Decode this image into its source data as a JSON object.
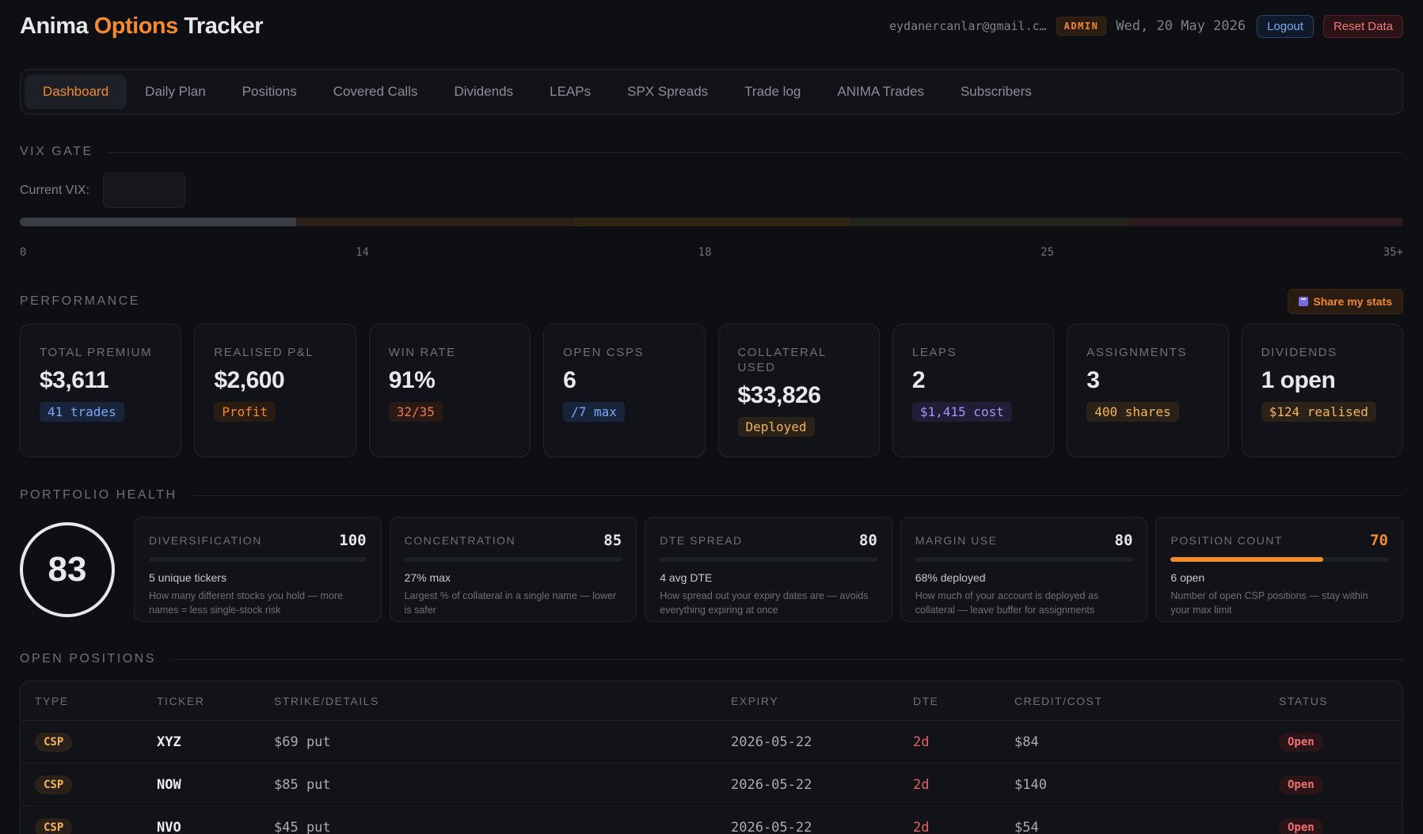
{
  "header": {
    "brand_part1": "Anima",
    "brand_part2": "Options",
    "brand_part3": "Tracker",
    "email": "eydanercanlar@gmail.c…",
    "role_badge": "ADMIN",
    "date": "Wed, 20 May 2026",
    "logout_label": "Logout",
    "reset_label": "Reset Data"
  },
  "nav": {
    "items": [
      {
        "label": "Dashboard",
        "active": true
      },
      {
        "label": "Daily Plan"
      },
      {
        "label": "Positions"
      },
      {
        "label": "Covered Calls"
      },
      {
        "label": "Dividends"
      },
      {
        "label": "LEAPs"
      },
      {
        "label": "SPX Spreads"
      },
      {
        "label": "Trade log"
      },
      {
        "label": "ANIMA Trades"
      },
      {
        "label": "Subscribers"
      }
    ]
  },
  "vix": {
    "title": "VIX GATE",
    "label": "Current VIX:",
    "value": "",
    "ticks": [
      "0",
      "14",
      "18",
      "25",
      "35+"
    ],
    "segment_colors": [
      "#3b3d45",
      "#2a1e16",
      "#2e2414",
      "#20241a",
      "#2a1a1e"
    ]
  },
  "performance": {
    "title": "PERFORMANCE",
    "share_label": "Share my stats",
    "stats": [
      {
        "label": "TOTAL PREMIUM",
        "value": "$3,611",
        "badge": "41 trades",
        "badge_fg": "#79a9f5",
        "badge_bg": "#18243a"
      },
      {
        "label": "REALISED P&L",
        "value": "$2,600",
        "badge": "Profit",
        "badge_fg": "#f28a2e",
        "badge_bg": "#2a1c10"
      },
      {
        "label": "WIN RATE",
        "value": "91%",
        "badge": "32/35",
        "badge_fg": "#f07a55",
        "badge_bg": "#2a1914"
      },
      {
        "label": "OPEN CSPS",
        "value": "6",
        "badge": "/7 max",
        "badge_fg": "#79a9f5",
        "badge_bg": "#18243a"
      },
      {
        "label": "COLLATERAL USED",
        "value": "$33,826",
        "badge": "Deployed",
        "badge_fg": "#f2b45e",
        "badge_bg": "#2a2218"
      },
      {
        "label": "LEAPS",
        "value": "2",
        "badge": "$1,415 cost",
        "badge_fg": "#a895f5",
        "badge_bg": "#221d36"
      },
      {
        "label": "ASSIGNMENTS",
        "value": "3",
        "badge": "400 shares",
        "badge_fg": "#f2b45e",
        "badge_bg": "#2a2218"
      },
      {
        "label": "DIVIDENDS",
        "value": "1 open",
        "badge": "$124 realised",
        "badge_fg": "#f2b45e",
        "badge_bg": "#2a2218"
      }
    ]
  },
  "health": {
    "title": "PORTFOLIO HEALTH",
    "score": "83",
    "cards": [
      {
        "label": "DIVERSIFICATION",
        "score": "100",
        "fill": 0,
        "main": "5 unique tickers",
        "desc": "How many different stocks you hold — more names = less single-stock risk",
        "score_color": "#e7e8ec"
      },
      {
        "label": "CONCENTRATION",
        "score": "85",
        "fill": 0,
        "main": "27% max",
        "desc": "Largest % of collateral in a single name — lower is safer",
        "score_color": "#e7e8ec"
      },
      {
        "label": "DTE SPREAD",
        "score": "80",
        "fill": 0,
        "main": "4 avg DTE",
        "desc": "How spread out your expiry dates are — avoids everything expiring at once",
        "score_color": "#e7e8ec"
      },
      {
        "label": "MARGIN USE",
        "score": "80",
        "fill": 0,
        "main": "68% deployed",
        "desc": "How much of your account is deployed as collateral — leave buffer for assignments",
        "score_color": "#e7e8ec"
      },
      {
        "label": "POSITION COUNT",
        "score": "70",
        "fill": 0.7,
        "main": "6 open",
        "desc": "Number of open CSP positions — stay within your max limit",
        "score_color": "#f28a2e"
      }
    ]
  },
  "positions": {
    "title": "OPEN POSITIONS",
    "columns": [
      "TYPE",
      "TICKER",
      "STRIKE/DETAILS",
      "EXPIRY",
      "DTE",
      "CREDIT/COST",
      "STATUS"
    ],
    "rows": [
      {
        "type": "CSP",
        "ticker": "XYZ",
        "details": "$69 put",
        "expiry": "2026-05-22",
        "dte": "2d",
        "credit": "$84",
        "status": "Open"
      },
      {
        "type": "CSP",
        "ticker": "NOW",
        "details": "$85 put",
        "expiry": "2026-05-22",
        "dte": "2d",
        "credit": "$140",
        "status": "Open"
      },
      {
        "type": "CSP",
        "ticker": "NVO",
        "details": "$45 put",
        "expiry": "2026-05-22",
        "dte": "2d",
        "credit": "$54",
        "status": "Open"
      }
    ]
  }
}
